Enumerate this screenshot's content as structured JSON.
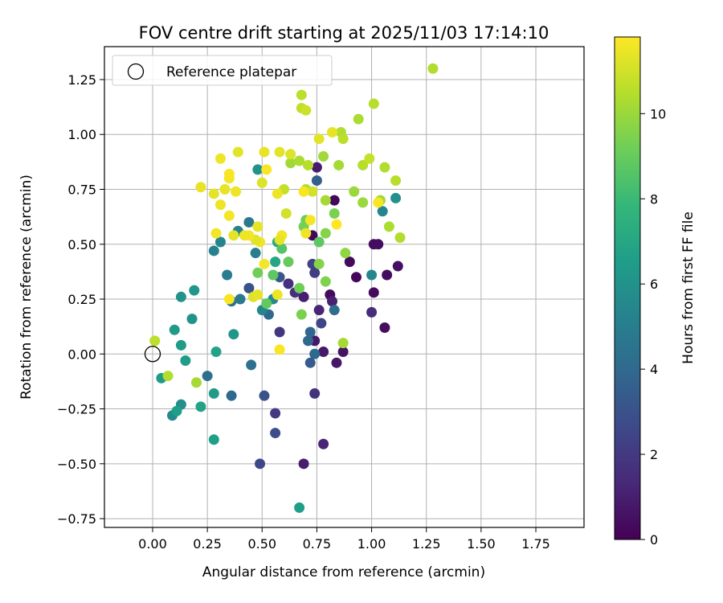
{
  "chart_data": {
    "type": "scatter",
    "title": "FOV centre drift starting at 2025/11/03 17:14:10",
    "xlabel": "Angular distance from reference (arcmin)",
    "ylabel": "Rotation from reference (arcmin)",
    "xlim": [
      -0.22,
      1.97
    ],
    "ylim": [
      -0.79,
      1.4
    ],
    "xticks": [
      0.0,
      0.25,
      0.5,
      0.75,
      1.0,
      1.25,
      1.5,
      1.75
    ],
    "xtick_labels": [
      "0.00",
      "0.25",
      "0.50",
      "0.75",
      "1.00",
      "1.25",
      "1.50",
      "1.75"
    ],
    "yticks": [
      -0.75,
      -0.5,
      -0.25,
      0.0,
      0.25,
      0.5,
      0.75,
      1.0,
      1.25
    ],
    "ytick_labels": [
      "−0.75",
      "−0.50",
      "−0.25",
      "0.00",
      "0.25",
      "0.50",
      "0.75",
      "1.00",
      "1.25"
    ],
    "grid": true,
    "legend": {
      "placement": "top-left",
      "label": "Reference platepar"
    },
    "reference_point": {
      "x": 0.0,
      "y": 0.0
    },
    "colorbar": {
      "label": "Hours from first FF file",
      "colormap": "viridis",
      "range": [
        0,
        11.8
      ],
      "ticks": [
        0,
        2,
        4,
        6,
        8,
        10
      ],
      "tick_labels": [
        "0",
        "2",
        "4",
        "6",
        "8",
        "10"
      ],
      "colors": [
        "#440154",
        "#482878",
        "#3e4989",
        "#31688e",
        "#26828e",
        "#1f9e89",
        "#35b779",
        "#6ece58",
        "#b5de2b",
        "#fde725"
      ]
    },
    "series": [
      {
        "points": [
          {
            "x": 0.73,
            "y": 0.54,
            "t": 0.2
          },
          {
            "x": 0.81,
            "y": 0.27,
            "t": 0.3
          },
          {
            "x": 0.83,
            "y": 0.7,
            "t": 0.2
          },
          {
            "x": 0.9,
            "y": 0.42,
            "t": 0.3
          },
          {
            "x": 0.93,
            "y": 0.35,
            "t": 0.2
          },
          {
            "x": 1.01,
            "y": 0.28,
            "t": 0.3
          },
          {
            "x": 1.01,
            "y": 0.5,
            "t": 0.4
          },
          {
            "x": 1.03,
            "y": 0.5,
            "t": 0.4
          },
          {
            "x": 1.06,
            "y": 0.12,
            "t": 0.4
          },
          {
            "x": 1.07,
            "y": 0.36,
            "t": 0.4
          },
          {
            "x": 1.12,
            "y": 0.4,
            "t": 0.5
          },
          {
            "x": 0.87,
            "y": 0.01,
            "t": 0.6
          },
          {
            "x": 0.84,
            "y": -0.04,
            "t": 0.7
          },
          {
            "x": 0.78,
            "y": 0.01,
            "t": 0.8
          },
          {
            "x": 0.74,
            "y": 0.06,
            "t": 0.8
          },
          {
            "x": 0.69,
            "y": 0.26,
            "t": 1.0
          },
          {
            "x": 0.75,
            "y": 0.85,
            "t": 0.9
          },
          {
            "x": 0.76,
            "y": 0.2,
            "t": 1.2
          },
          {
            "x": 0.82,
            "y": 0.24,
            "t": 1.1
          },
          {
            "x": 1.0,
            "y": 0.19,
            "t": 1.5
          },
          {
            "x": 0.69,
            "y": -0.5,
            "t": 1.0
          },
          {
            "x": 0.78,
            "y": -0.41,
            "t": 1.2
          },
          {
            "x": 0.62,
            "y": 0.32,
            "t": 1.6
          },
          {
            "x": 0.65,
            "y": 0.28,
            "t": 1.6
          },
          {
            "x": 0.58,
            "y": 0.1,
            "t": 1.9
          },
          {
            "x": 0.74,
            "y": -0.18,
            "t": 1.7
          },
          {
            "x": 0.56,
            "y": -0.27,
            "t": 2.0
          },
          {
            "x": 0.73,
            "y": 0.41,
            "t": 2.4
          },
          {
            "x": 0.74,
            "y": 0.37,
            "t": 2.2
          },
          {
            "x": 0.77,
            "y": 0.14,
            "t": 2.5
          },
          {
            "x": 0.49,
            "y": -0.5,
            "t": 2.6
          },
          {
            "x": 0.56,
            "y": -0.36,
            "t": 2.8
          },
          {
            "x": 0.51,
            "y": -0.19,
            "t": 3.0
          },
          {
            "x": 0.44,
            "y": 0.3,
            "t": 3.0
          },
          {
            "x": 0.58,
            "y": 0.35,
            "t": 3.2
          },
          {
            "x": 0.72,
            "y": -0.04,
            "t": 3.4
          },
          {
            "x": 0.75,
            "y": 0.79,
            "t": 3.6
          },
          {
            "x": 0.72,
            "y": 0.1,
            "t": 3.9
          },
          {
            "x": 0.74,
            "y": 0.0,
            "t": 4.0
          },
          {
            "x": 0.71,
            "y": 0.06,
            "t": 4.0
          },
          {
            "x": 0.83,
            "y": 0.2,
            "t": 4.2
          },
          {
            "x": 0.53,
            "y": 0.18,
            "t": 4.0
          },
          {
            "x": 0.45,
            "y": -0.05,
            "t": 4.4
          },
          {
            "x": 0.36,
            "y": -0.19,
            "t": 4.0
          },
          {
            "x": 0.25,
            "y": -0.1,
            "t": 4.3
          },
          {
            "x": 0.36,
            "y": 0.24,
            "t": 4.5
          },
          {
            "x": 0.4,
            "y": 0.25,
            "t": 4.8
          },
          {
            "x": 0.44,
            "y": 0.6,
            "t": 4.8
          },
          {
            "x": 0.47,
            "y": 0.46,
            "t": 5.0
          },
          {
            "x": 0.34,
            "y": 0.36,
            "t": 5.0
          },
          {
            "x": 0.39,
            "y": 0.56,
            "t": 5.3
          },
          {
            "x": 0.28,
            "y": 0.47,
            "t": 5.3
          },
          {
            "x": 0.31,
            "y": 0.51,
            "t": 5.4
          },
          {
            "x": 0.5,
            "y": 0.2,
            "t": 5.4
          },
          {
            "x": 0.55,
            "y": 0.25,
            "t": 5.6
          },
          {
            "x": 1.0,
            "y": 0.36,
            "t": 5.5
          },
          {
            "x": 1.05,
            "y": 0.65,
            "t": 5.4
          },
          {
            "x": 1.11,
            "y": 0.71,
            "t": 5.8
          },
          {
            "x": 0.48,
            "y": 0.84,
            "t": 6.0
          },
          {
            "x": 0.37,
            "y": 0.09,
            "t": 6.2
          },
          {
            "x": 0.13,
            "y": 0.26,
            "t": 6.0
          },
          {
            "x": 0.19,
            "y": 0.29,
            "t": 6.2
          },
          {
            "x": 0.18,
            "y": 0.16,
            "t": 6.0
          },
          {
            "x": 0.1,
            "y": 0.11,
            "t": 6.4
          },
          {
            "x": 0.13,
            "y": 0.04,
            "t": 6.4
          },
          {
            "x": 0.15,
            "y": -0.03,
            "t": 6.5
          },
          {
            "x": 0.04,
            "y": -0.11,
            "t": 6.4
          },
          {
            "x": 0.13,
            "y": -0.23,
            "t": 5.8
          },
          {
            "x": 0.09,
            "y": -0.28,
            "t": 5.6
          },
          {
            "x": 0.11,
            "y": -0.26,
            "t": 6.6
          },
          {
            "x": 0.28,
            "y": -0.18,
            "t": 6.4
          },
          {
            "x": 0.22,
            "y": -0.24,
            "t": 6.8
          },
          {
            "x": 0.28,
            "y": -0.39,
            "t": 6.6
          },
          {
            "x": 0.29,
            "y": 0.01,
            "t": 6.8
          },
          {
            "x": 0.67,
            "y": -0.7,
            "t": 6.6
          },
          {
            "x": 0.56,
            "y": 0.42,
            "t": 7.0
          },
          {
            "x": 0.57,
            "y": 0.51,
            "t": 7.2
          },
          {
            "x": 0.59,
            "y": 0.48,
            "t": 8.6
          },
          {
            "x": 0.55,
            "y": 0.36,
            "t": 8.8
          },
          {
            "x": 0.52,
            "y": 0.23,
            "t": 8.9
          },
          {
            "x": 0.48,
            "y": 0.37,
            "t": 9.2
          },
          {
            "x": 0.62,
            "y": 0.42,
            "t": 9.0
          },
          {
            "x": 0.67,
            "y": 0.3,
            "t": 9.2
          },
          {
            "x": 0.68,
            "y": 0.18,
            "t": 9.4
          },
          {
            "x": 0.7,
            "y": 0.61,
            "t": 9.1
          },
          {
            "x": 0.69,
            "y": 0.58,
            "t": 9.3
          },
          {
            "x": 0.76,
            "y": 0.51,
            "t": 8.8
          },
          {
            "x": 0.79,
            "y": 0.33,
            "t": 9.5
          },
          {
            "x": 0.76,
            "y": 0.41,
            "t": 9.6
          },
          {
            "x": 0.79,
            "y": 0.55,
            "t": 9.6
          },
          {
            "x": 0.83,
            "y": 0.64,
            "t": 9.4
          },
          {
            "x": 0.88,
            "y": 0.46,
            "t": 9.8
          },
          {
            "x": 0.87,
            "y": 0.05,
            "t": 10.2
          },
          {
            "x": 0.2,
            "y": -0.13,
            "t": 10.2
          },
          {
            "x": 0.07,
            "y": -0.1,
            "t": 10.4
          },
          {
            "x": 0.01,
            "y": 0.06,
            "t": 10.6
          },
          {
            "x": 0.92,
            "y": 0.74,
            "t": 10.0
          },
          {
            "x": 0.96,
            "y": 0.69,
            "t": 10.0
          },
          {
            "x": 0.79,
            "y": 0.7,
            "t": 10.2
          },
          {
            "x": 0.7,
            "y": 0.75,
            "t": 10.4
          },
          {
            "x": 0.63,
            "y": 0.87,
            "t": 10.1
          },
          {
            "x": 0.67,
            "y": 0.88,
            "t": 10.3
          },
          {
            "x": 0.71,
            "y": 0.86,
            "t": 10.5
          },
          {
            "x": 0.78,
            "y": 0.9,
            "t": 10.1
          },
          {
            "x": 0.85,
            "y": 0.86,
            "t": 10.2
          },
          {
            "x": 0.86,
            "y": 1.01,
            "t": 10.4
          },
          {
            "x": 0.87,
            "y": 0.98,
            "t": 10.6
          },
          {
            "x": 0.94,
            "y": 1.07,
            "t": 10.3
          },
          {
            "x": 0.96,
            "y": 0.86,
            "t": 10.5
          },
          {
            "x": 0.99,
            "y": 0.89,
            "t": 10.8
          },
          {
            "x": 1.06,
            "y": 0.85,
            "t": 10.4
          },
          {
            "x": 1.11,
            "y": 0.79,
            "t": 10.5
          },
          {
            "x": 1.04,
            "y": 0.7,
            "t": 10.1
          },
          {
            "x": 1.08,
            "y": 0.58,
            "t": 10.3
          },
          {
            "x": 1.13,
            "y": 0.53,
            "t": 10.4
          },
          {
            "x": 1.01,
            "y": 1.14,
            "t": 10.5
          },
          {
            "x": 0.68,
            "y": 1.18,
            "t": 10.6
          },
          {
            "x": 0.68,
            "y": 1.12,
            "t": 10.7
          },
          {
            "x": 0.7,
            "y": 1.11,
            "t": 10.9
          },
          {
            "x": 1.28,
            "y": 1.3,
            "t": 10.4
          },
          {
            "x": 0.73,
            "y": 0.74,
            "t": 11.0
          },
          {
            "x": 0.6,
            "y": 0.75,
            "t": 10.8
          },
          {
            "x": 0.61,
            "y": 0.64,
            "t": 11.0
          },
          {
            "x": 0.63,
            "y": 0.91,
            "t": 11.2
          },
          {
            "x": 0.76,
            "y": 0.98,
            "t": 11.3
          },
          {
            "x": 0.82,
            "y": 1.01,
            "t": 11.4
          },
          {
            "x": 0.5,
            "y": 0.78,
            "t": 11.2
          },
          {
            "x": 0.51,
            "y": 0.92,
            "t": 11.4
          },
          {
            "x": 0.58,
            "y": 0.92,
            "t": 11.3
          },
          {
            "x": 0.57,
            "y": 0.73,
            "t": 11.5
          },
          {
            "x": 0.59,
            "y": 0.54,
            "t": 11.6
          },
          {
            "x": 0.58,
            "y": 0.52,
            "t": 11.4
          },
          {
            "x": 0.57,
            "y": 0.27,
            "t": 11.5
          },
          {
            "x": 0.58,
            "y": 0.02,
            "t": 11.7
          },
          {
            "x": 0.52,
            "y": 0.84,
            "t": 11.7
          },
          {
            "x": 0.48,
            "y": 0.58,
            "t": 11.4
          },
          {
            "x": 0.49,
            "y": 0.51,
            "t": 11.5
          },
          {
            "x": 0.47,
            "y": 0.52,
            "t": 11.3
          },
          {
            "x": 0.51,
            "y": 0.41,
            "t": 11.6
          },
          {
            "x": 0.46,
            "y": 0.26,
            "t": 11.2
          },
          {
            "x": 0.48,
            "y": 0.27,
            "t": 11.4
          },
          {
            "x": 0.44,
            "y": 0.54,
            "t": 11.6
          },
          {
            "x": 0.42,
            "y": 0.54,
            "t": 11.5
          },
          {
            "x": 0.37,
            "y": 0.54,
            "t": 11.3
          },
          {
            "x": 0.35,
            "y": 0.25,
            "t": 11.7
          },
          {
            "x": 0.35,
            "y": 0.63,
            "t": 11.6
          },
          {
            "x": 0.31,
            "y": 0.68,
            "t": 11.5
          },
          {
            "x": 0.33,
            "y": 0.75,
            "t": 11.4
          },
          {
            "x": 0.35,
            "y": 0.8,
            "t": 11.6
          },
          {
            "x": 0.35,
            "y": 0.82,
            "t": 11.7
          },
          {
            "x": 0.38,
            "y": 0.74,
            "t": 11.5
          },
          {
            "x": 0.28,
            "y": 0.73,
            "t": 11.3
          },
          {
            "x": 0.22,
            "y": 0.76,
            "t": 11.4
          },
          {
            "x": 0.31,
            "y": 0.89,
            "t": 11.5
          },
          {
            "x": 0.39,
            "y": 0.92,
            "t": 11.3
          },
          {
            "x": 0.29,
            "y": 0.55,
            "t": 11.6
          },
          {
            "x": 0.69,
            "y": 0.74,
            "t": 11.7
          },
          {
            "x": 0.72,
            "y": 0.61,
            "t": 11.6
          },
          {
            "x": 0.7,
            "y": 0.55,
            "t": 11.5
          },
          {
            "x": 0.84,
            "y": 0.59,
            "t": 11.8
          },
          {
            "x": 1.03,
            "y": 0.69,
            "t": 11.7
          }
        ]
      }
    ]
  }
}
